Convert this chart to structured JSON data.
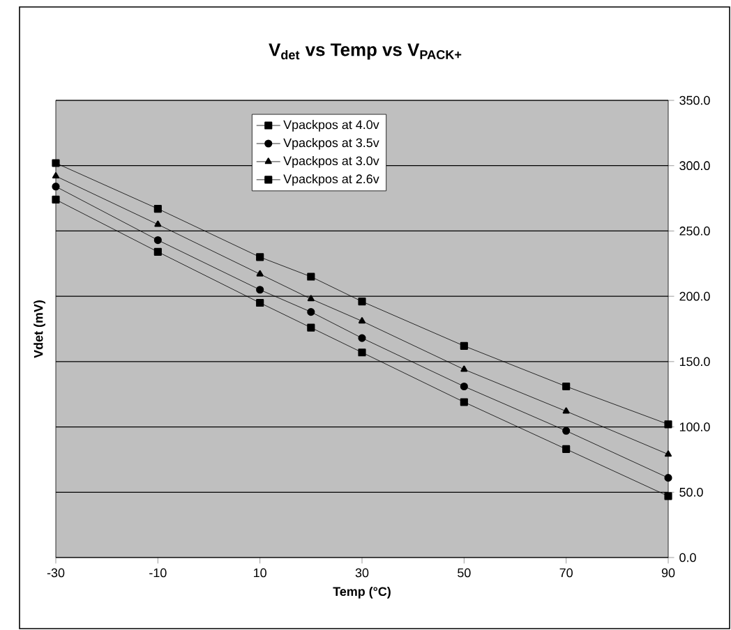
{
  "chart_data": {
    "type": "line",
    "title": "V$_{det}$ vs Temp vs V$_{PACK+}$",
    "xlabel": "Temp (°C)",
    "ylabel": "Vdet (mV)",
    "x": [
      -30,
      -10,
      10,
      20,
      30,
      50,
      70,
      90
    ],
    "series": [
      {
        "name": "Vpackpos at 4.0v",
        "color": "#000000",
        "marker": "square",
        "values": [
          274,
          234,
          195,
          176,
          157,
          119,
          83,
          47
        ]
      },
      {
        "name": "Vpackpos at 3.5v",
        "color": "#000000",
        "marker": "circle",
        "values": [
          284,
          243,
          205,
          188,
          168,
          131,
          97,
          61
        ]
      },
      {
        "name": "Vpackpos at 3.0v",
        "color": "#000000",
        "marker": "triangle",
        "values": [
          292,
          255,
          217,
          198,
          181,
          144,
          112,
          79
        ]
      },
      {
        "name": "Vpackpos at 2.6v",
        "color": "#000000",
        "marker": "square",
        "values": [
          302,
          267,
          230,
          215,
          196,
          162,
          131,
          102
        ]
      }
    ],
    "xlim": [
      -30,
      90
    ],
    "xticks": [
      -30,
      -10,
      10,
      30,
      50,
      70,
      90
    ],
    "ylim": [
      0,
      350
    ],
    "yticks": [
      {
        "value": 0,
        "label": "0.0"
      },
      {
        "value": 50,
        "label": "50.0"
      },
      {
        "value": 100,
        "label": "100.0"
      },
      {
        "value": 150,
        "label": "150.0"
      },
      {
        "value": 200,
        "label": "200.0"
      },
      {
        "value": 250,
        "label": "250.0"
      },
      {
        "value": 300,
        "label": "300.0"
      },
      {
        "value": 350,
        "label": "350.0"
      }
    ],
    "grid": "y",
    "legend": "top left",
    "line_style": "solid"
  }
}
